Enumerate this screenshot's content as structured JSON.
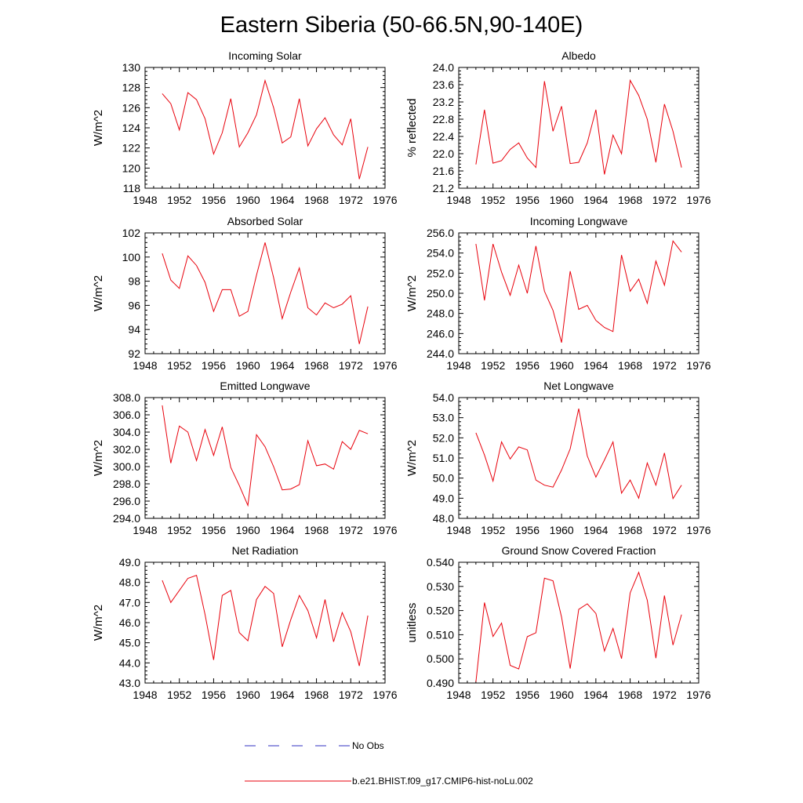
{
  "figure": {
    "title": "Eastern Siberia (50-66.5N,90-140E)"
  },
  "colors": {
    "series": "#e8000b",
    "axes": "#000000",
    "obs": "#3030c0"
  },
  "legend": {
    "items": [
      {
        "label": "No Obs",
        "style": "dashed",
        "color": "#3030c0"
      },
      {
        "label": "b.e21.BHIST.f09_g17.CMIP6-hist-noLu.002",
        "style": "solid",
        "color": "#e8000b"
      }
    ]
  },
  "chart_data": [
    {
      "type": "line",
      "title": "Incoming Solar",
      "ylabel": "W/m^2",
      "xlim": [
        1948,
        1976
      ],
      "ylim": [
        118,
        130
      ],
      "xticks": [
        "1948",
        "1952",
        "1956",
        "1960",
        "1964",
        "1968",
        "1972",
        "1976"
      ],
      "yticks": [
        "118",
        "120",
        "122",
        "124",
        "126",
        "128",
        "130"
      ],
      "x": [
        1950,
        1951,
        1952,
        1953,
        1954,
        1955,
        1956,
        1957,
        1958,
        1959,
        1960,
        1961,
        1962,
        1963,
        1964,
        1965,
        1966,
        1967,
        1968,
        1969,
        1970,
        1971,
        1972,
        1973,
        1974
      ],
      "series": [
        {
          "name": "b.e21.BHIST.f09_g17.CMIP6-hist-noLu.002",
          "values": [
            127.4,
            126.4,
            123.8,
            127.5,
            126.8,
            124.9,
            121.4,
            123.5,
            126.9,
            122.1,
            123.5,
            125.3,
            128.7,
            126.0,
            122.5,
            123.1,
            126.9,
            122.2,
            123.9,
            125.0,
            123.3,
            122.3,
            124.9,
            118.9,
            122.1
          ]
        }
      ]
    },
    {
      "type": "line",
      "title": "Albedo",
      "ylabel": "% reflected",
      "xlim": [
        1948,
        1976
      ],
      "ylim": [
        21.2,
        24.0
      ],
      "xticks": [
        "1948",
        "1952",
        "1956",
        "1960",
        "1964",
        "1968",
        "1972",
        "1976"
      ],
      "yticks": [
        "21.2",
        "21.6",
        "22.0",
        "22.4",
        "22.8",
        "23.2",
        "23.6",
        "24.0"
      ],
      "x": [
        1950,
        1951,
        1952,
        1953,
        1954,
        1955,
        1956,
        1957,
        1958,
        1959,
        1960,
        1961,
        1962,
        1963,
        1964,
        1965,
        1966,
        1967,
        1968,
        1969,
        1970,
        1971,
        1972,
        1973,
        1974
      ],
      "series": [
        {
          "name": "b.e21.BHIST.f09_g17.CMIP6-hist-noLu.002",
          "values": [
            21.75,
            23.02,
            21.78,
            21.84,
            22.1,
            22.25,
            21.9,
            21.68,
            23.68,
            22.52,
            23.1,
            21.77,
            21.8,
            22.25,
            23.02,
            21.52,
            22.43,
            22.0,
            23.7,
            23.35,
            22.8,
            21.8,
            23.15,
            22.52,
            21.68
          ]
        }
      ]
    },
    {
      "type": "line",
      "title": "Absorbed Solar",
      "ylabel": "W/m^2",
      "xlim": [
        1948,
        1976
      ],
      "ylim": [
        92,
        102
      ],
      "xticks": [
        "1948",
        "1952",
        "1956",
        "1960",
        "1964",
        "1968",
        "1972",
        "1976"
      ],
      "yticks": [
        "92",
        "94",
        "96",
        "98",
        "100",
        "102"
      ],
      "x": [
        1950,
        1951,
        1952,
        1953,
        1954,
        1955,
        1956,
        1957,
        1958,
        1959,
        1960,
        1961,
        1962,
        1963,
        1964,
        1965,
        1966,
        1967,
        1968,
        1969,
        1970,
        1971,
        1972,
        1973,
        1974
      ],
      "series": [
        {
          "name": "b.e21.BHIST.f09_g17.CMIP6-hist-noLu.002",
          "values": [
            100.3,
            98.1,
            97.4,
            100.1,
            99.3,
            97.9,
            95.5,
            97.3,
            97.3,
            95.1,
            95.5,
            98.5,
            101.2,
            98.3,
            94.9,
            97.1,
            99.1,
            95.8,
            95.2,
            96.2,
            95.8,
            96.1,
            96.8,
            92.8,
            95.9
          ]
        }
      ]
    },
    {
      "type": "line",
      "title": "Incoming Longwave",
      "ylabel": "W/m^2",
      "xlim": [
        1948,
        1976
      ],
      "ylim": [
        244.0,
        256.0
      ],
      "xticks": [
        "1948",
        "1952",
        "1956",
        "1960",
        "1964",
        "1968",
        "1972",
        "1976"
      ],
      "yticks": [
        "244.0",
        "246.0",
        "248.0",
        "250.0",
        "252.0",
        "254.0",
        "256.0"
      ],
      "x": [
        1950,
        1951,
        1952,
        1953,
        1954,
        1955,
        1956,
        1957,
        1958,
        1959,
        1960,
        1961,
        1962,
        1963,
        1964,
        1965,
        1966,
        1967,
        1968,
        1969,
        1970,
        1971,
        1972,
        1973,
        1974
      ],
      "series": [
        {
          "name": "b.e21.BHIST.f09_g17.CMIP6-hist-noLu.002",
          "values": [
            254.9,
            249.3,
            254.9,
            252.1,
            249.8,
            252.8,
            250.0,
            254.7,
            250.2,
            248.3,
            245.1,
            252.2,
            248.4,
            248.8,
            247.3,
            246.6,
            246.2,
            253.8,
            250.2,
            251.4,
            249.0,
            253.2,
            250.8,
            255.2,
            254.1
          ]
        }
      ]
    },
    {
      "type": "line",
      "title": "Emitted Longwave",
      "ylabel": "W/m^2",
      "xlim": [
        1948,
        1976
      ],
      "ylim": [
        294.0,
        308.0
      ],
      "xticks": [
        "1948",
        "1952",
        "1956",
        "1960",
        "1964",
        "1968",
        "1972",
        "1976"
      ],
      "yticks": [
        "294.0",
        "296.0",
        "298.0",
        "300.0",
        "302.0",
        "304.0",
        "306.0",
        "308.0"
      ],
      "x": [
        1950,
        1951,
        1952,
        1953,
        1954,
        1955,
        1956,
        1957,
        1958,
        1959,
        1960,
        1961,
        1962,
        1963,
        1964,
        1965,
        1966,
        1967,
        1968,
        1969,
        1970,
        1971,
        1972,
        1973,
        1974
      ],
      "series": [
        {
          "name": "b.e21.BHIST.f09_g17.CMIP6-hist-noLu.002",
          "values": [
            307.1,
            300.4,
            304.7,
            304.0,
            300.7,
            304.3,
            301.3,
            304.6,
            299.9,
            297.8,
            295.5,
            303.7,
            302.3,
            300.0,
            297.3,
            297.4,
            297.9,
            303.0,
            300.1,
            300.3,
            299.7,
            302.9,
            302.0,
            304.2,
            303.8
          ]
        }
      ]
    },
    {
      "type": "line",
      "title": "Net Longwave",
      "ylabel": "W/m^2",
      "xlim": [
        1948,
        1976
      ],
      "ylim": [
        48.0,
        54.0
      ],
      "xticks": [
        "1948",
        "1952",
        "1956",
        "1960",
        "1964",
        "1968",
        "1972",
        "1976"
      ],
      "yticks": [
        "48.0",
        "49.0",
        "50.0",
        "51.0",
        "52.0",
        "53.0",
        "54.0"
      ],
      "x": [
        1950,
        1951,
        1952,
        1953,
        1954,
        1955,
        1956,
        1957,
        1958,
        1959,
        1960,
        1961,
        1962,
        1963,
        1964,
        1965,
        1966,
        1967,
        1968,
        1969,
        1970,
        1971,
        1972,
        1973,
        1974
      ],
      "series": [
        {
          "name": "b.e21.BHIST.f09_g17.CMIP6-hist-noLu.002",
          "values": [
            52.25,
            51.15,
            49.85,
            51.8,
            50.95,
            51.55,
            51.4,
            49.9,
            49.65,
            49.55,
            50.4,
            51.45,
            53.45,
            51.1,
            50.05,
            50.9,
            51.8,
            49.25,
            49.9,
            49.0,
            50.75,
            49.65,
            51.25,
            48.98,
            49.65
          ]
        }
      ]
    },
    {
      "type": "line",
      "title": "Net Radiation",
      "ylabel": "W/m^2",
      "xlim": [
        1948,
        1976
      ],
      "ylim": [
        43.0,
        49.0
      ],
      "xticks": [
        "1948",
        "1952",
        "1956",
        "1960",
        "1964",
        "1968",
        "1972",
        "1976"
      ],
      "yticks": [
        "43.0",
        "44.0",
        "45.0",
        "46.0",
        "47.0",
        "48.0",
        "49.0"
      ],
      "x": [
        1950,
        1951,
        1952,
        1953,
        1954,
        1955,
        1956,
        1957,
        1958,
        1959,
        1960,
        1961,
        1962,
        1963,
        1964,
        1965,
        1966,
        1967,
        1968,
        1969,
        1970,
        1971,
        1972,
        1973,
        1974
      ],
      "series": [
        {
          "name": "b.e21.BHIST.f09_g17.CMIP6-hist-noLu.002",
          "values": [
            48.1,
            47.0,
            47.6,
            48.2,
            48.35,
            46.4,
            44.15,
            47.35,
            47.6,
            45.5,
            45.1,
            47.15,
            47.8,
            47.45,
            44.8,
            46.15,
            47.35,
            46.6,
            45.25,
            47.15,
            45.05,
            46.5,
            45.55,
            43.85,
            46.35
          ]
        }
      ]
    },
    {
      "type": "line",
      "title": "Ground Snow Covered Fraction",
      "ylabel": "unitless",
      "xlim": [
        1948,
        1976
      ],
      "ylim": [
        0.49,
        0.54
      ],
      "xticks": [
        "1948",
        "1952",
        "1956",
        "1960",
        "1964",
        "1968",
        "1972",
        "1976"
      ],
      "yticks": [
        "0.490",
        "0.500",
        "0.510",
        "0.520",
        "0.530",
        "0.540"
      ],
      "x": [
        1950,
        1951,
        1952,
        1953,
        1954,
        1955,
        1956,
        1957,
        1958,
        1959,
        1960,
        1961,
        1962,
        1963,
        1964,
        1965,
        1966,
        1967,
        1968,
        1969,
        1970,
        1971,
        1972,
        1973,
        1974
      ],
      "series": [
        {
          "name": "b.e21.BHIST.f09_g17.CMIP6-hist-noLu.002",
          "values": [
            0.4905,
            0.5233,
            0.5093,
            0.5148,
            0.4973,
            0.4958,
            0.5092,
            0.5108,
            0.5334,
            0.5323,
            0.5173,
            0.496,
            0.5205,
            0.5228,
            0.5188,
            0.5032,
            0.5126,
            0.5001,
            0.5273,
            0.5358,
            0.5243,
            0.5003,
            0.5262,
            0.5057,
            0.5183
          ]
        }
      ]
    }
  ]
}
